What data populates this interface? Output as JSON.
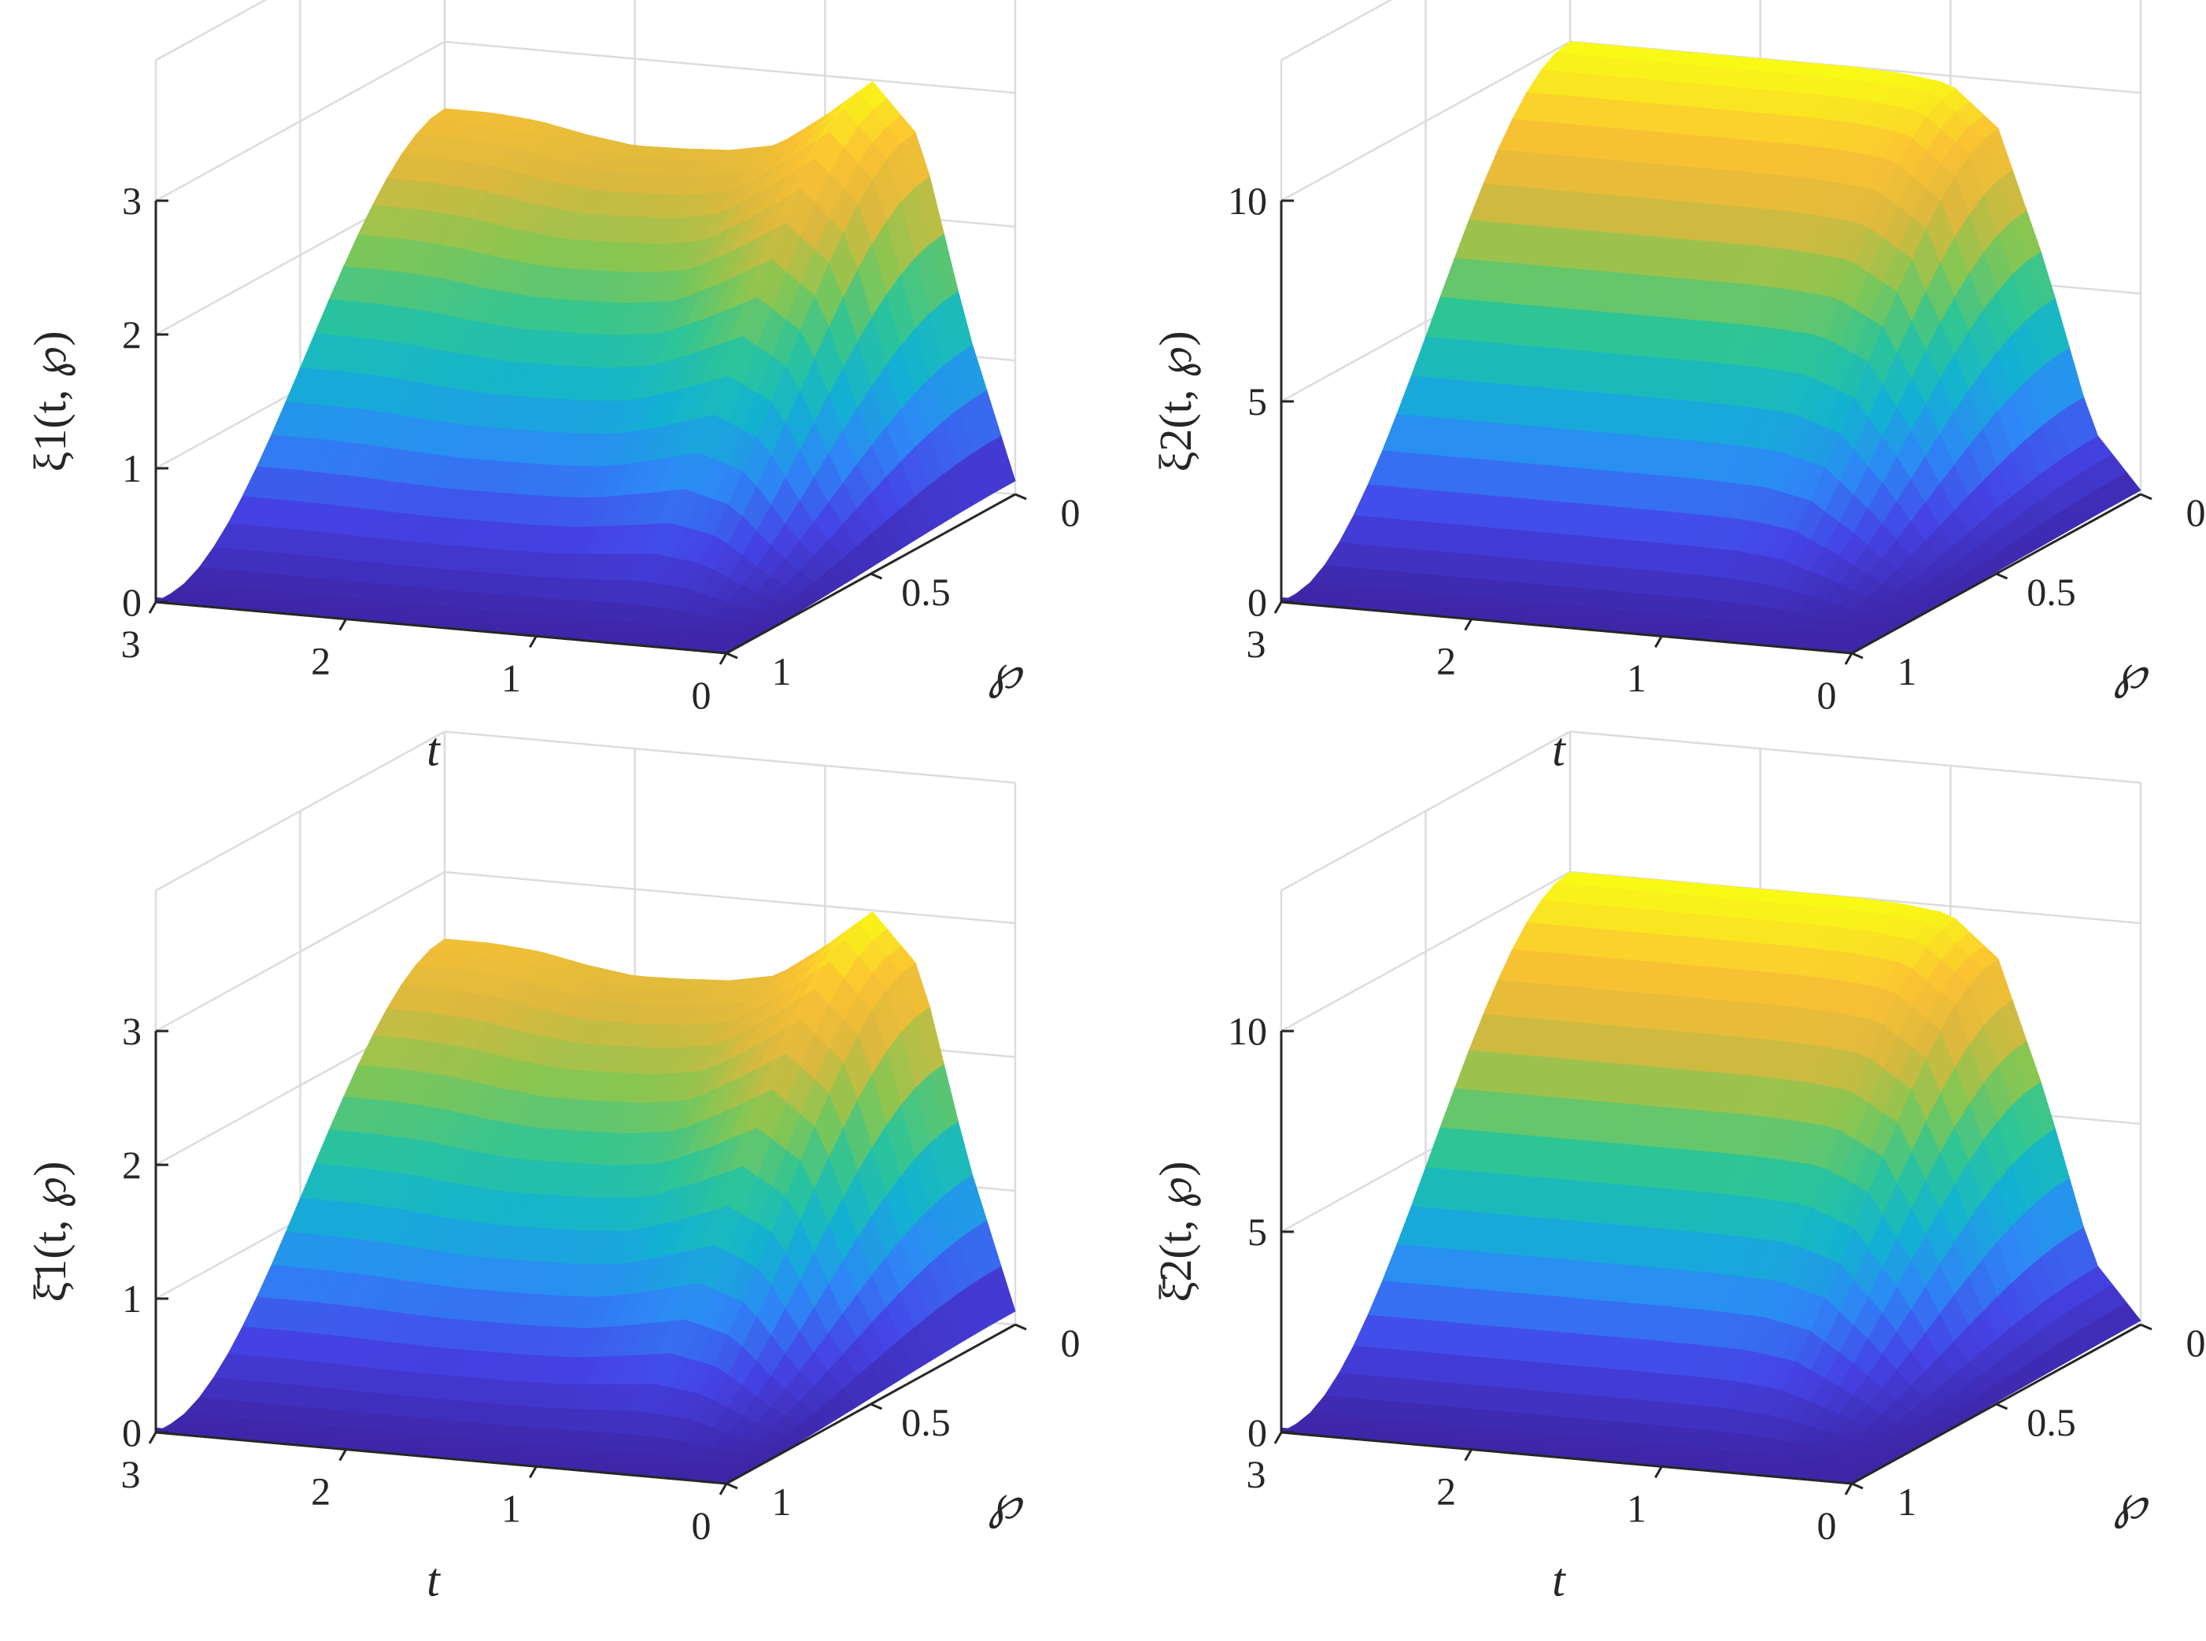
{
  "figure": {
    "colormap": [
      "#3e26a8",
      "#4543e6",
      "#2e87f7",
      "#12b2d2",
      "#2dc597",
      "#86c652",
      "#dcb83d",
      "#fbc233",
      "#f9fb15"
    ]
  },
  "chart_data": [
    {
      "type": "surface",
      "panel": "top-left",
      "zlabel": "ξ1(t, ℘)",
      "xlabel": "t",
      "ylabel": "℘",
      "xlim": [
        0,
        3
      ],
      "ylim": [
        0,
        1
      ],
      "zlim": [
        0,
        3
      ],
      "xticks": [
        "0",
        "1",
        "2",
        "3"
      ],
      "yticks": [
        "0",
        "0.5",
        "1"
      ],
      "zticks": [
        "0",
        "1",
        "2",
        "3"
      ],
      "grid": true,
      "profile_t": [
        0,
        0.25,
        0.5,
        0.75,
        1,
        1.25,
        1.5,
        1.75,
        2,
        2.25,
        2.5,
        2.75,
        3
      ],
      "profile_peak_z": [
        0.1,
        1.2,
        2.6,
        2.99,
        2.7,
        2.45,
        2.38,
        2.36,
        2.35,
        2.4,
        2.47,
        2.5,
        2.5
      ],
      "description_values": {
        "z_at_phi1_t3": 0.0,
        "z_at_phi0_t3": 2.5,
        "z_max": 3.0
      }
    },
    {
      "type": "surface",
      "panel": "top-right",
      "zlabel": "ξ2(t, ℘)",
      "xlabel": "t",
      "ylabel": "℘",
      "xlim": [
        0,
        3
      ],
      "ylim": [
        0,
        1
      ],
      "zlim": [
        0,
        10
      ],
      "xticks": [
        "0",
        "1",
        "2",
        "3"
      ],
      "yticks": [
        "0",
        "0.5",
        "1"
      ],
      "zticks": [
        "0",
        "5",
        "10"
      ],
      "grid": true,
      "profile_t": [
        0,
        0.25,
        0.5,
        0.75,
        1,
        1.25,
        1.5,
        1.75,
        2,
        2.25,
        2.5,
        2.75,
        3
      ],
      "profile_peak_z": [
        0.1,
        1.5,
        5.5,
        8.8,
        9.8,
        9.95,
        10,
        10,
        10,
        10,
        10,
        10,
        10
      ],
      "description_values": {
        "z_at_phi1_t3": 0.0,
        "z_at_phi0_t3": 10.0,
        "z_max": 10.0
      }
    },
    {
      "type": "surface",
      "panel": "bottom-left",
      "zlabel": "ξ̄1(t, ℘)",
      "xlabel": "t",
      "ylabel": "℘",
      "xlim": [
        0,
        3
      ],
      "ylim": [
        0,
        1
      ],
      "zlim": [
        0,
        3
      ],
      "xticks": [
        "0",
        "1",
        "2",
        "3"
      ],
      "yticks": [
        "0",
        "0.5",
        "1"
      ],
      "zticks": [
        "0",
        "1",
        "2",
        "3"
      ],
      "grid": true,
      "profile_t": [
        0,
        0.25,
        0.5,
        0.75,
        1,
        1.25,
        1.5,
        1.75,
        2,
        2.25,
        2.5,
        2.75,
        3
      ],
      "profile_peak_z": [
        0.1,
        1.2,
        2.6,
        2.99,
        2.7,
        2.45,
        2.38,
        2.36,
        2.35,
        2.4,
        2.47,
        2.5,
        2.5
      ],
      "description_values": {
        "z_at_phi1_t3": 0.0,
        "z_at_phi0_t3": 2.5,
        "z_max": 3.0
      }
    },
    {
      "type": "surface",
      "panel": "bottom-right",
      "zlabel": "ξ̄2(t, ℘)",
      "xlabel": "t",
      "ylabel": "℘",
      "xlim": [
        0,
        3
      ],
      "ylim": [
        0,
        1
      ],
      "zlim": [
        0,
        10
      ],
      "xticks": [
        "0",
        "1",
        "2",
        "3"
      ],
      "yticks": [
        "0",
        "0.5",
        "1"
      ],
      "zticks": [
        "0",
        "5",
        "10"
      ],
      "grid": true,
      "profile_t": [
        0,
        0.25,
        0.5,
        0.75,
        1,
        1.25,
        1.5,
        1.75,
        2,
        2.25,
        2.5,
        2.75,
        3
      ],
      "profile_peak_z": [
        0.1,
        1.5,
        5.5,
        8.8,
        9.8,
        9.95,
        10,
        10,
        10,
        10,
        10,
        10,
        10
      ],
      "description_values": {
        "z_at_phi1_t3": 0.0,
        "z_at_phi0_t3": 10.0,
        "z_max": 10.0
      }
    }
  ]
}
